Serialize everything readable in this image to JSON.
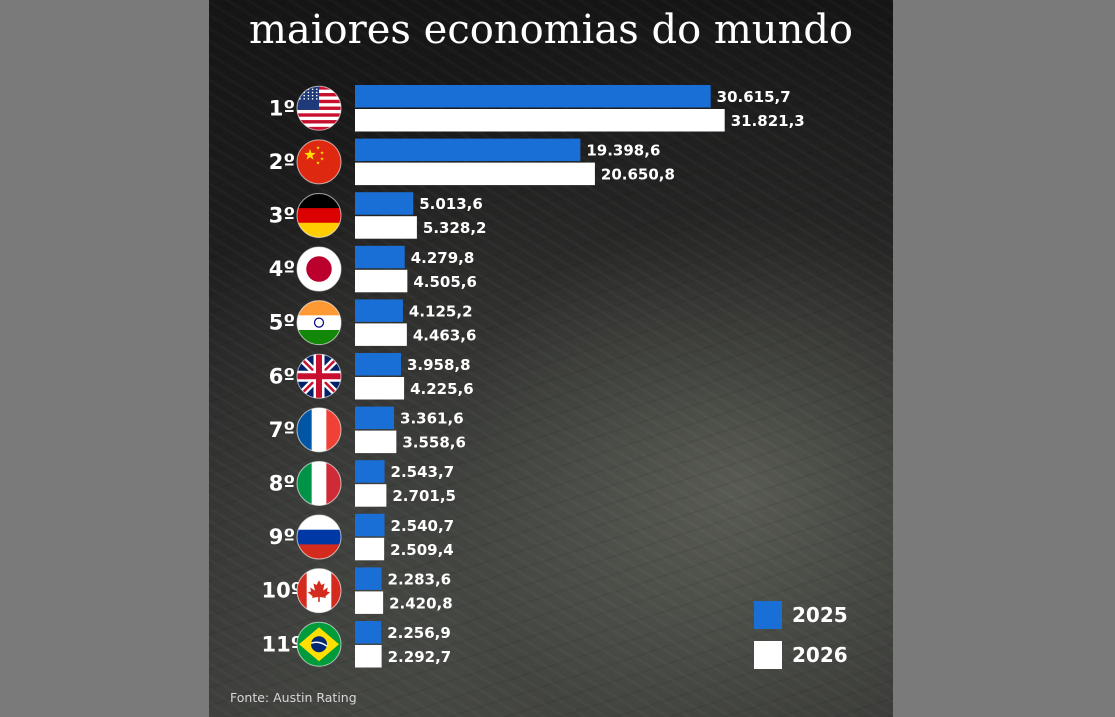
{
  "chart_data": {
    "type": "bar",
    "orientation": "horizontal",
    "title": "maiores economias do mundo",
    "source": "Fonte: Austin Rating",
    "legend_position": "bottom-right",
    "grid": false,
    "xlim": [
      0,
      34000
    ],
    "colors": {
      "2025": "#1a6fd6",
      "2026": "#ffffff"
    },
    "categories": [
      "1º",
      "2º",
      "3º",
      "4º",
      "5º",
      "6º",
      "7º",
      "8º",
      "9º",
      "10º",
      "11º"
    ],
    "flags": [
      "usa-flag-icon",
      "china-flag-icon",
      "germany-flag-icon",
      "japan-flag-icon",
      "india-flag-icon",
      "uk-flag-icon",
      "france-flag-icon",
      "italy-flag-icon",
      "russia-flag-icon",
      "canada-flag-icon",
      "brazil-flag-icon"
    ],
    "series": [
      {
        "name": "2025",
        "values": [
          30615.7,
          19398.6,
          5013.6,
          4279.8,
          4125.2,
          3958.8,
          3361.6,
          2543.7,
          2540.7,
          2283.6,
          2256.9
        ],
        "labels": [
          "30.615,7",
          "19.398,6",
          "5.013,6",
          "4.279,8",
          "4.125,2",
          "3.958,8",
          "3.361,6",
          "2.543,7",
          "2.540,7",
          "2.283,6",
          "2.256,9"
        ]
      },
      {
        "name": "2026",
        "values": [
          31821.3,
          20650.8,
          5328.2,
          4505.6,
          4463.6,
          4225.6,
          3558.6,
          2701.5,
          2509.4,
          2420.8,
          2292.7
        ],
        "labels": [
          "31.821,3",
          "20.650,8",
          "5.328,2",
          "4.505,6",
          "4.463,6",
          "4.225,6",
          "3.558,6",
          "2.701,5",
          "2.509,4",
          "2.420,8",
          "2.292,7"
        ]
      }
    ]
  }
}
